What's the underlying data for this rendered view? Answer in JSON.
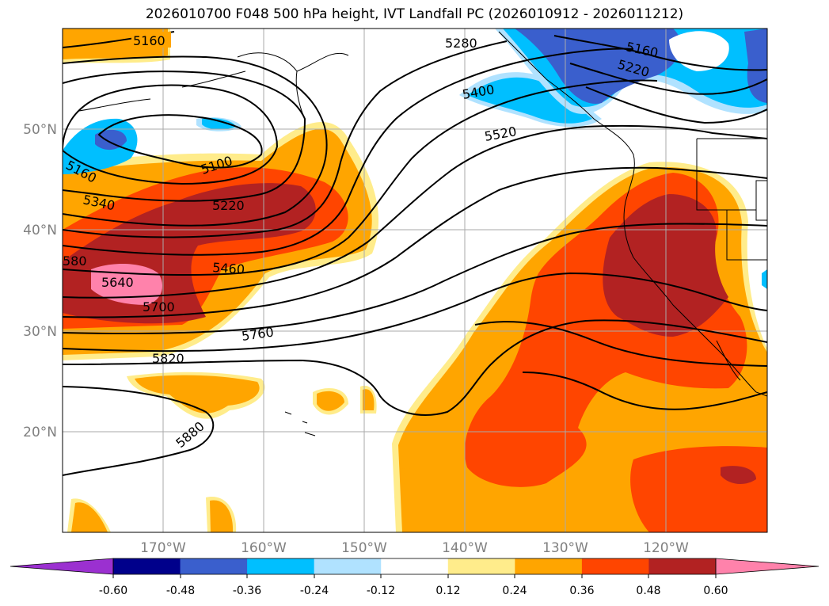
{
  "title": "2026010700 F048 500 hPa height, IVT Landfall PC (2026010912 - 2026011212)",
  "map": {
    "longitude_labels": [
      "170°W",
      "160°W",
      "150°W",
      "140°W",
      "130°W",
      "120°W"
    ],
    "latitude_labels": [
      "50°N",
      "40°N",
      "30°N",
      "20°N"
    ],
    "height_contour_labels": [
      "5160",
      "5160",
      "5100",
      "5220",
      "5340",
      "580",
      "5640",
      "5700",
      "5460",
      "5760",
      "5820",
      "5880",
      "5280",
      "5400",
      "5520",
      "5160",
      "5220"
    ]
  },
  "colorbar": {
    "tick_labels": [
      "-0.60",
      "-0.48",
      "-0.36",
      "-0.24",
      "-0.12",
      "0.12",
      "0.24",
      "0.36",
      "0.48",
      "0.60"
    ],
    "colors": {
      "under": "#9b30d0",
      "bins": [
        "#00008b",
        "#3a5fcd",
        "#00bfff",
        "#b0e2ff",
        "#ffffff",
        "#ffec8b",
        "#ffa500",
        "#ff4500",
        "#b22222"
      ],
      "over": "#ff82ab"
    }
  },
  "colors": {
    "contour": "#000000",
    "grid": "#aaaaaa",
    "axis_label": "#808080"
  }
}
